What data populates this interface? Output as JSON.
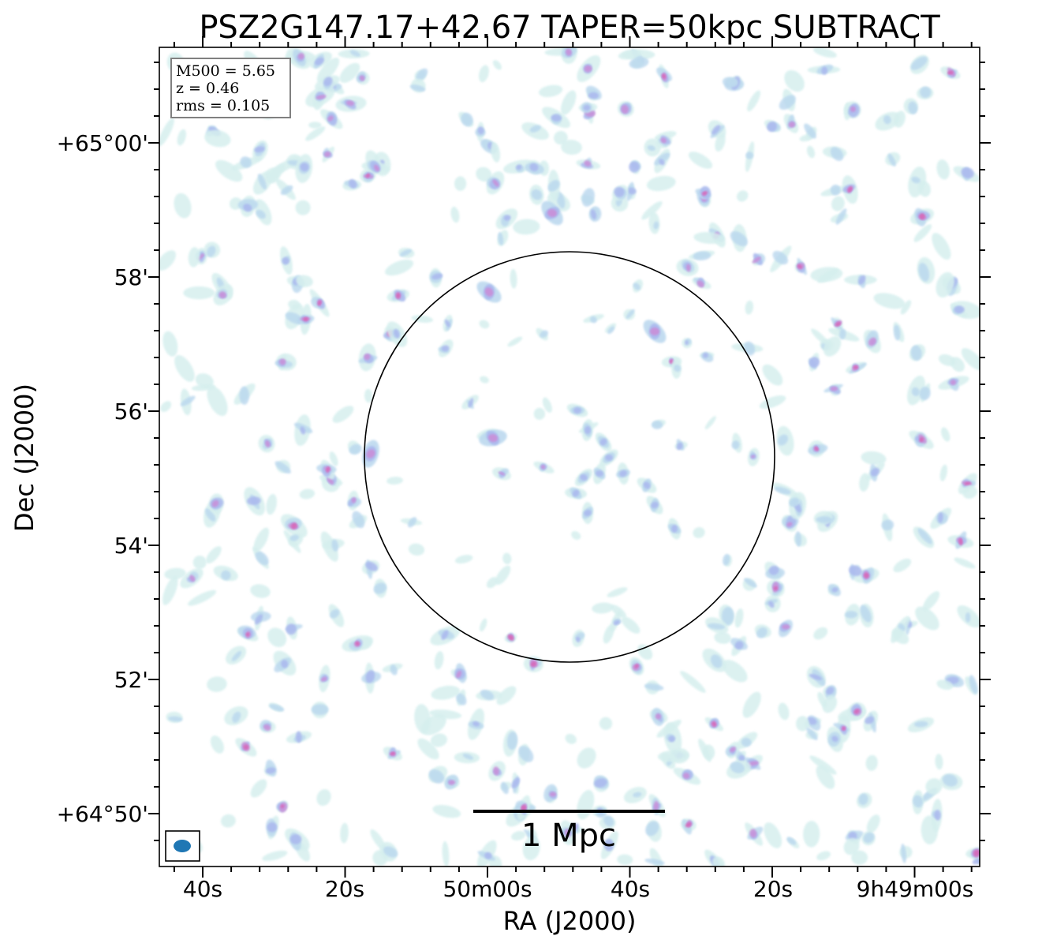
{
  "chart_data": {
    "type": "heatmap",
    "title": "PSZ2G147.17+42.67 TAPER=50kpc SUBTRACT",
    "xlabel": "RA (J2000)",
    "ylabel": "Dec (J2000)",
    "x_ticks": [
      "40s",
      "20s",
      "50m00s",
      "40s",
      "20s",
      "9h49m00s"
    ],
    "y_ticks": [
      "+65°00'",
      "58'",
      "56'",
      "54'",
      "52'",
      "+64°50'"
    ],
    "info": {
      "m500": "M500 = 5.65",
      "z": "z = 0.46",
      "rms": "rms = 0.105"
    },
    "scalebar_label": "1 Mpc",
    "colormap": [
      "#d6efee",
      "#b9d7ee",
      "#aab8ee",
      "#c98fd8",
      "#d669b8"
    ],
    "circle_color": "#000000",
    "beam_color": "#1f77b4"
  }
}
